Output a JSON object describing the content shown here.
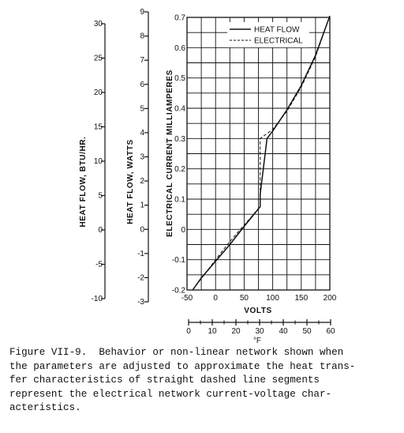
{
  "chart_data": {
    "type": "line",
    "title": "",
    "xlabel": "VOLTS",
    "ylabel": "ELECTRICAL  CURRENT  MILLIAMPERES",
    "xlim": [
      -50,
      200
    ],
    "ylim": [
      -0.2,
      0.7
    ],
    "x_ticks": [
      -50,
      0,
      50,
      100,
      150,
      200
    ],
    "x_tick_labels": [
      "-50",
      "0",
      "50",
      "100",
      "150",
      "200"
    ],
    "y_ticks": [
      -0.2,
      -0.1,
      0,
      0.1,
      0.2,
      0.3,
      0.4,
      0.5,
      0.6,
      0.7
    ],
    "y_tick_labels": [
      "-0.2",
      "-0.1",
      "0",
      "0.1",
      "0.2",
      "0.3",
      "0.4",
      "0.5",
      "0.6",
      "0.7"
    ],
    "grid": true,
    "legend_position": "top-right",
    "series": [
      {
        "name": "HEAT FLOW",
        "style": "solid",
        "x": [
          -40,
          -25,
          0,
          25,
          50,
          78,
          78,
          90,
          100,
          125,
          150,
          175,
          200
        ],
        "y": [
          -0.2,
          -0.16,
          -0.105,
          -0.05,
          0.01,
          0.075,
          0.115,
          0.3,
          0.325,
          0.395,
          0.475,
          0.575,
          0.705
        ]
      },
      {
        "name": "ELECTRICAL",
        "style": "dashed",
        "x": [
          -40,
          0,
          25,
          78,
          78,
          100,
          125,
          150,
          175,
          200
        ],
        "y": [
          -0.2,
          -0.1,
          -0.04,
          0.075,
          0.3,
          0.33,
          0.39,
          0.47,
          0.57,
          0.705
        ]
      }
    ],
    "secondary_axes": [
      {
        "label": "°F",
        "position": "bottom",
        "ticks": [
          "0",
          "10",
          "20",
          "30",
          "40",
          "50",
          "60"
        ]
      },
      {
        "label": "HEAT  FLOW,  WATTS",
        "position": "left",
        "ticks": [
          "9",
          "8",
          "7",
          "6",
          "5",
          "4",
          "3",
          "2",
          "1",
          "0",
          "-1",
          "-2",
          "-3"
        ]
      },
      {
        "label": "HEAT  FLOW,   BTU/HR.",
        "position": "left",
        "ticks": [
          "30",
          "25",
          "20",
          "15",
          "10",
          "5",
          "0",
          "-5",
          "-10"
        ]
      }
    ]
  },
  "caption": "Figure VII-9.  Behavior or non-linear network shown when\nthe parameters are adjusted to approximate the heat trans-\nfer characteristics of straight dashed line segments\nrepresent the electrical network current-voltage char-\nacteristics."
}
